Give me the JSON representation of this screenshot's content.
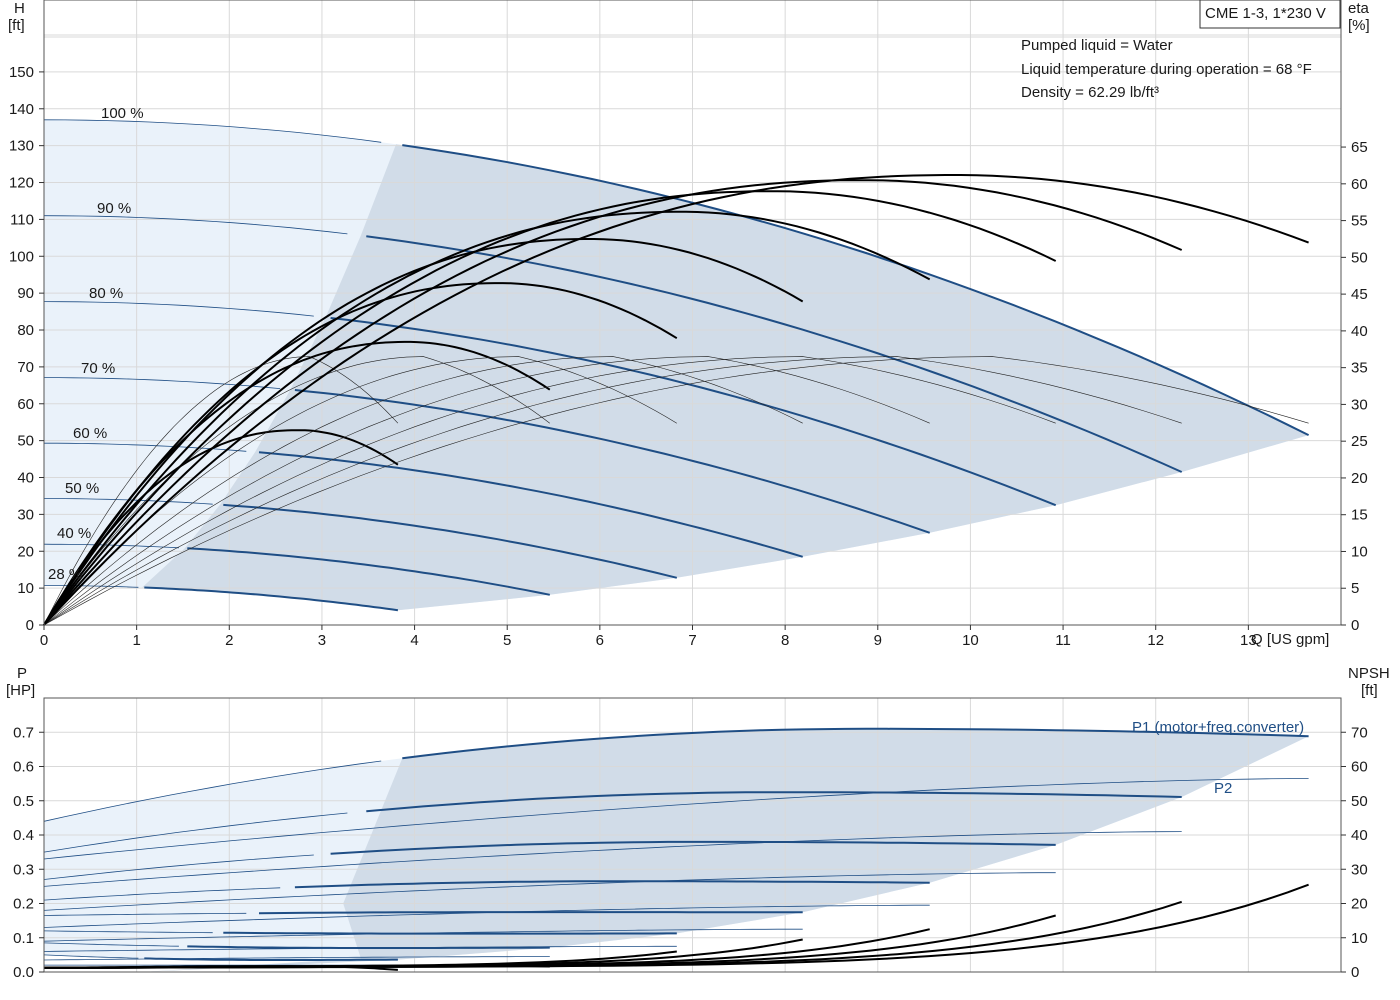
{
  "chart_data": [
    {
      "type": "line",
      "panel": "head_and_efficiency",
      "product_label": "CME 1-3, 1*230 V",
      "ylabel_left": [
        "H",
        "[ft]"
      ],
      "ylabel_right": [
        "eta",
        "[%]"
      ],
      "xlabel": "Q [US gpm]",
      "xlim": [
        0,
        14
      ],
      "ylim_left": [
        0,
        160
      ],
      "ylim_right": [
        0,
        70
      ],
      "xticks": [
        "0",
        "1",
        "2",
        "3",
        "4",
        "5",
        "6",
        "7",
        "8",
        "9",
        "10",
        "11",
        "12",
        "13"
      ],
      "yticks_left": [
        "0",
        "10",
        "20",
        "30",
        "40",
        "50",
        "60",
        "70",
        "80",
        "90",
        "100",
        "110",
        "120",
        "130",
        "140",
        "150"
      ],
      "yticks_right": [
        "0",
        "5",
        "10",
        "15",
        "20",
        "25",
        "30",
        "35",
        "40",
        "45",
        "50",
        "55",
        "60",
        "65"
      ],
      "grid": true,
      "info": [
        "Pumped liquid = Water",
        "Liquid temperature during operation = 68 °F",
        "Density = 62.29 lb/ft³"
      ],
      "speed_labels": [
        "100 %",
        "90 %",
        "80 %",
        "70 %",
        "60 %",
        "50 %",
        "40 %",
        "28 %"
      ],
      "series": [
        {
          "name": "100 %",
          "shutoff_head": 137,
          "qmax": 13.65,
          "head_at_qmax": 51.5,
          "q_bep_band": 3.8
        },
        {
          "name": "90 %",
          "shutoff_head": 111,
          "qmax": 12.28,
          "head_at_qmax": 41.5,
          "q_bep_band": 3.42
        },
        {
          "name": "80 %",
          "shutoff_head": 87.7,
          "qmax": 10.92,
          "head_at_qmax": 32.5,
          "q_bep_band": 3.04
        },
        {
          "name": "70 %",
          "shutoff_head": 67.1,
          "qmax": 9.56,
          "head_at_qmax": 25,
          "q_bep_band": 2.66
        },
        {
          "name": "60 %",
          "shutoff_head": 49.3,
          "qmax": 8.19,
          "head_at_qmax": 18.5,
          "q_bep_band": 2.28
        },
        {
          "name": "50 %",
          "shutoff_head": 34.3,
          "qmax": 6.83,
          "head_at_qmax": 12.8,
          "q_bep_band": 1.9
        },
        {
          "name": "40 %",
          "shutoff_head": 21.9,
          "qmax": 5.46,
          "head_at_qmax": 8.2,
          "q_bep_band": 1.52
        },
        {
          "name": "28 %",
          "shutoff_head": 10.7,
          "qmax": 3.82,
          "head_at_qmax": 4,
          "q_bep_band": 1.06
        }
      ],
      "efficiency_series": [
        {
          "qmax": 3.82,
          "eta_peak": 26.5,
          "eta_end": 21.8
        },
        {
          "qmax": 5.46,
          "eta_peak": 38.5,
          "eta_end": 32
        },
        {
          "qmax": 6.83,
          "eta_peak": 46.5,
          "eta_end": 39
        },
        {
          "qmax": 8.19,
          "eta_peak": 52.5,
          "eta_end": 44
        },
        {
          "qmax": 9.56,
          "eta_peak": 56.2,
          "eta_end": 47
        },
        {
          "qmax": 10.92,
          "eta_peak": 59,
          "eta_end": 49.5
        },
        {
          "qmax": 12.28,
          "eta_peak": 60.5,
          "eta_end": 51
        },
        {
          "qmax": 13.65,
          "eta_peak": 61.2,
          "eta_end": 52
        }
      ]
    },
    {
      "type": "line",
      "panel": "power_and_npsh",
      "ylabel_left": [
        "P",
        "[HP]"
      ],
      "ylabel_right": [
        "NPSH",
        "[ft]"
      ],
      "xlim": [
        0,
        14
      ],
      "ylim_left": [
        0,
        0.8
      ],
      "ylim_right": [
        0,
        80
      ],
      "yticks_left": [
        "0.0",
        "0.1",
        "0.2",
        "0.3",
        "0.4",
        "0.5",
        "0.6",
        "0.7"
      ],
      "yticks_right": [
        "0",
        "10",
        "20",
        "30",
        "40",
        "50",
        "60",
        "70"
      ],
      "grid": true,
      "series_labels": [
        "P1 (motor+freq.converter)",
        "P2"
      ],
      "series": [
        {
          "name": "P1 (motor+freq.converter)",
          "p1_at_zero": [
            0.44,
            0.35,
            0.27,
            0.21,
            0.165,
            0.12,
            0.085,
            0.05
          ],
          "p1_peak": [
            0.71,
            0.525,
            0.38,
            0.265,
            0.175,
            0.112,
            0.07,
            0.035
          ]
        },
        {
          "name": "P2",
          "p2_at_zero": [
            0.33,
            0.25,
            0.18,
            0.13,
            0.09,
            0.06,
            0.035,
            0.02
          ],
          "p2_at_qmax": [
            0.565,
            0.41,
            0.29,
            0.195,
            0.125,
            0.075,
            0.045,
            0.02
          ]
        }
      ],
      "npsh_series": [
        {
          "qmax": 3.82,
          "npsh_end": 0.6
        },
        {
          "qmax": 5.46,
          "npsh_end": 1.6
        },
        {
          "qmax": 6.83,
          "npsh_end": 6
        },
        {
          "qmax": 8.19,
          "npsh_end": 9.5
        },
        {
          "qmax": 9.56,
          "npsh_end": 12.5
        },
        {
          "qmax": 10.92,
          "npsh_end": 16.5
        },
        {
          "qmax": 12.28,
          "npsh_end": 20.5
        },
        {
          "qmax": 13.65,
          "npsh_end": 25.5
        }
      ]
    }
  ]
}
